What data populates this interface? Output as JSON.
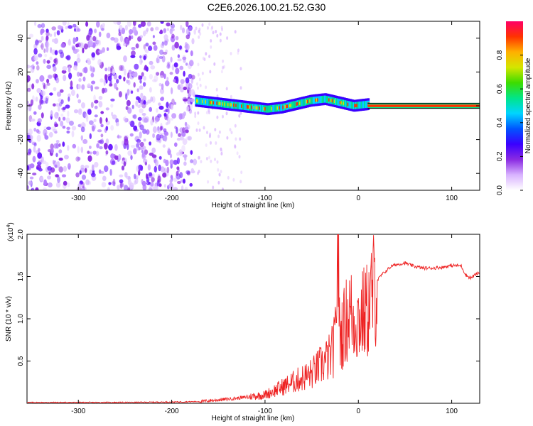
{
  "title": "C2E6.2026.100.21.52.G30",
  "chart_data": [
    {
      "type": "heatmap",
      "xlabel": "Height of straight line (km)",
      "ylabel": "Frequency (Hz)",
      "xlim": [
        -355,
        130
      ],
      "ylim": [
        -50,
        50
      ],
      "xticks": [
        -300,
        -200,
        -100,
        0,
        100
      ],
      "yticks": [
        -40,
        -20,
        0,
        20,
        40
      ],
      "colorbar": {
        "label": "Normalized spectral amplitude",
        "range": [
          0,
          1
        ],
        "ticks": [
          "0.0",
          "0.2",
          "0.4",
          "0.6",
          "0.8"
        ],
        "colors": [
          "#ffffff",
          "#d9b3ff",
          "#8a2be2",
          "#3a00ff",
          "#0055ff",
          "#00d5ff",
          "#00e58a",
          "#3cdc00",
          "#d4e600",
          "#ffb000",
          "#ff3300",
          "#ff0066"
        ]
      },
      "regions": [
        {
          "name": "noise",
          "x": [
            -355,
            -175
          ],
          "freq": [
            -50,
            50
          ],
          "amplitude": 0.15
        },
        {
          "name": "sparse noise",
          "x": [
            -175,
            -125
          ],
          "freq": [
            -50,
            50
          ],
          "amplitude": 0.05
        },
        {
          "name": "tone band",
          "x": [
            -175,
            10
          ],
          "center_freq": [
            3,
            2,
            1,
            0,
            -1,
            -2,
            -1,
            1,
            3,
            4,
            2,
            0,
            1
          ],
          "width_hz": 7,
          "amplitude": 0.35
        },
        {
          "name": "tone line",
          "x": [
            10,
            130
          ],
          "freq": 0,
          "width_hz": 3,
          "amplitude": 0.95
        }
      ]
    },
    {
      "type": "line",
      "xlabel": "Height of straight line (km)",
      "ylabel": "SNR (10 * v/v)",
      "y_multiplier": "(x10",
      "y_multiplier_exp": "4",
      "y_multiplier_close": ")",
      "xlim": [
        -355,
        130
      ],
      "ylim": [
        0,
        2.0
      ],
      "xticks": [
        -300,
        -200,
        -100,
        0,
        100
      ],
      "yticks": [
        "0.5",
        "1.0",
        "1.5",
        "2.0"
      ],
      "series": [
        {
          "color": "#ee2222",
          "x": [
            -355,
            -300,
            -250,
            -200,
            -170,
            -150,
            -130,
            -115,
            -100,
            -90,
            -80,
            -70,
            -60,
            -50,
            -40,
            -30,
            -25,
            -22,
            -20,
            -15,
            -10,
            -5,
            0,
            5,
            10,
            15,
            20,
            25,
            30,
            35,
            40,
            50,
            60,
            70,
            80,
            90,
            100,
            110,
            115,
            120,
            125,
            130
          ],
          "y": [
            0.01,
            0.01,
            0.01,
            0.015,
            0.02,
            0.04,
            0.06,
            0.08,
            0.1,
            0.15,
            0.2,
            0.25,
            0.3,
            0.35,
            0.45,
            0.55,
            0.7,
            2.0,
            0.8,
            0.9,
            1.1,
            1.0,
            1.0,
            1.05,
            1.1,
            1.3,
            1.45,
            1.52,
            1.57,
            1.62,
            1.64,
            1.66,
            1.62,
            1.6,
            1.6,
            1.61,
            1.63,
            1.63,
            1.52,
            1.48,
            1.52,
            1.55
          ]
        }
      ]
    }
  ]
}
